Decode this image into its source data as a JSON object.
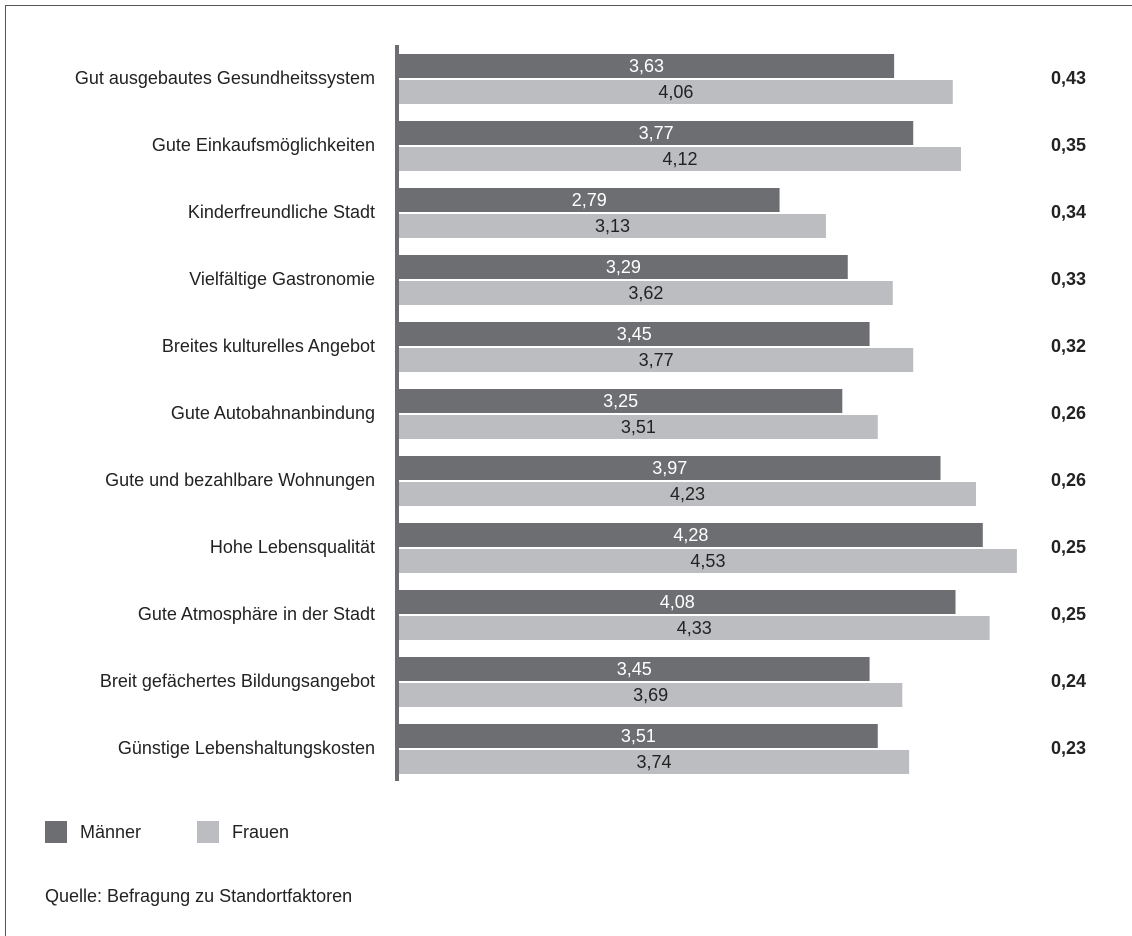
{
  "chart_data": {
    "type": "bar",
    "orientation": "horizontal",
    "categories": [
      "Gut ausgebautes Gesundheitssystem",
      "Gute Einkaufsmöglichkeiten",
      "Kinderfreundliche Stadt",
      "Vielfältige Gastronomie",
      "Breites kulturelles Angebot",
      "Gute Autobahnanbindung",
      "Gute und bezahlbare Wohnungen",
      "Hohe Lebensqualität",
      "Gute Atmosphäre in der Stadt",
      "Breit gefächertes Bildungsangebot",
      "Günstige Lebenshaltungskosten"
    ],
    "series": [
      {
        "name": "Männer",
        "color": "#6d6e71",
        "values": [
          3.63,
          3.77,
          2.79,
          3.29,
          3.45,
          3.25,
          3.97,
          4.28,
          4.08,
          3.45,
          3.51
        ],
        "value_labels": [
          "3,63",
          "3,77",
          "2,79",
          "3,29",
          "3,45",
          "3,25",
          "3,97",
          "4,28",
          "4,08",
          "3,45",
          "3,51"
        ]
      },
      {
        "name": "Frauen",
        "color": "#bcbdc0",
        "values": [
          4.06,
          4.12,
          3.13,
          3.62,
          3.77,
          3.51,
          4.23,
          4.53,
          4.33,
          3.69,
          3.74
        ],
        "value_labels": [
          "4,06",
          "4,12",
          "3,13",
          "3,62",
          "3,77",
          "3,51",
          "4,23",
          "4,53",
          "4,33",
          "3,69",
          "3,74"
        ]
      }
    ],
    "annotations": [
      "0,43",
      "0,35",
      "0,34",
      "0,33",
      "0,32",
      "0,26",
      "0,26",
      "0,25",
      "0,25",
      "0,24",
      "0,23"
    ],
    "xlim": [
      0,
      5
    ],
    "source": "Quelle: Befragung zu Standortfaktoren"
  }
}
